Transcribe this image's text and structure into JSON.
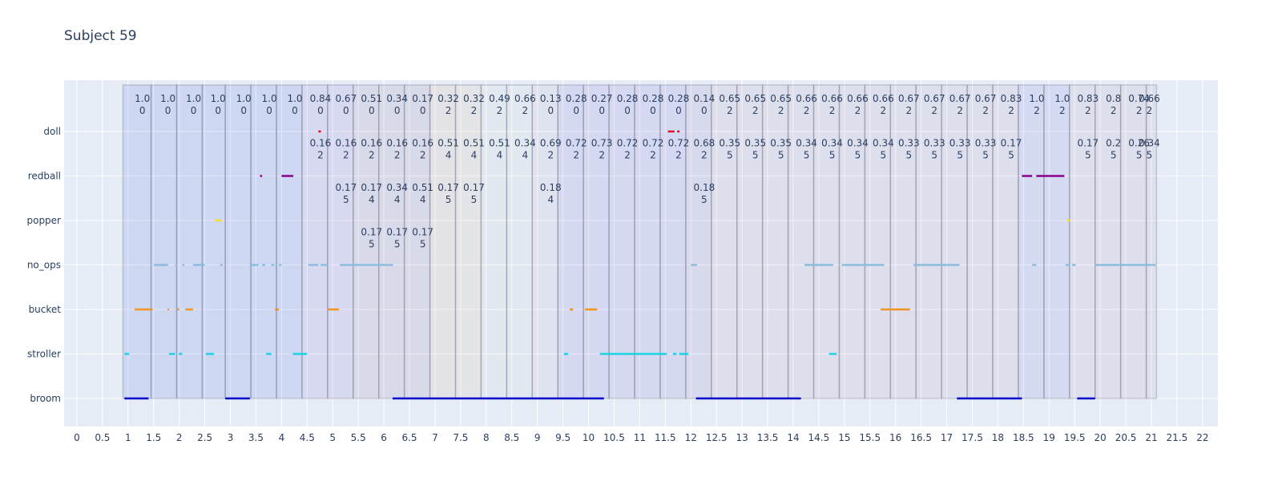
{
  "chart_data": {
    "type": "timeline",
    "title": "Subject 59",
    "xlim": [
      -0.25,
      22.3
    ],
    "x_ticks": [
      0,
      0.5,
      1,
      1.5,
      2,
      2.5,
      3,
      3.5,
      4,
      4.5,
      5,
      5.5,
      6,
      6.5,
      7,
      7.5,
      8,
      8.5,
      9,
      9.5,
      10,
      10.5,
      11,
      11.5,
      12,
      12.5,
      13,
      13.5,
      14,
      14.5,
      15,
      15.5,
      16,
      16.5,
      17,
      17.5,
      18,
      18.5,
      19,
      19.5,
      20,
      20.5,
      21,
      21.5,
      22
    ],
    "categories": [
      "broom",
      "stroller",
      "bucket",
      "no_ops",
      "popper",
      "redball",
      "doll"
    ],
    "colors": {
      "broom": "#0000cc",
      "stroller": "#1cd3e6",
      "bucket": "#f0951e",
      "no_ops": "#8ebcdf",
      "popper": "#f2e02a",
      "redball": "#8b008b",
      "doll": "#e0102a"
    },
    "segments": [
      {
        "cat": "broom",
        "start": 0.93,
        "end": 1.4
      },
      {
        "cat": "broom",
        "start": 2.9,
        "end": 3.38
      },
      {
        "cat": "broom",
        "start": 6.17,
        "end": 10.3
      },
      {
        "cat": "broom",
        "start": 12.1,
        "end": 14.15
      },
      {
        "cat": "broom",
        "start": 17.2,
        "end": 18.47
      },
      {
        "cat": "broom",
        "start": 19.55,
        "end": 19.9
      },
      {
        "cat": "stroller",
        "start": 0.93,
        "end": 1.02
      },
      {
        "cat": "stroller",
        "start": 1.8,
        "end": 1.92
      },
      {
        "cat": "stroller",
        "start": 1.99,
        "end": 2.06
      },
      {
        "cat": "stroller",
        "start": 2.52,
        "end": 2.68
      },
      {
        "cat": "stroller",
        "start": 3.7,
        "end": 3.8
      },
      {
        "cat": "stroller",
        "start": 4.22,
        "end": 4.5
      },
      {
        "cat": "stroller",
        "start": 9.52,
        "end": 9.6
      },
      {
        "cat": "stroller",
        "start": 10.22,
        "end": 11.53
      },
      {
        "cat": "stroller",
        "start": 11.65,
        "end": 11.72
      },
      {
        "cat": "stroller",
        "start": 11.77,
        "end": 11.95
      },
      {
        "cat": "stroller",
        "start": 14.7,
        "end": 14.85
      },
      {
        "cat": "bucket",
        "start": 1.13,
        "end": 1.48
      },
      {
        "cat": "bucket",
        "start": 1.77,
        "end": 1.8
      },
      {
        "cat": "bucket",
        "start": 1.96,
        "end": 2.0
      },
      {
        "cat": "bucket",
        "start": 2.12,
        "end": 2.27
      },
      {
        "cat": "bucket",
        "start": 3.87,
        "end": 3.95
      },
      {
        "cat": "bucket",
        "start": 4.9,
        "end": 5.12
      },
      {
        "cat": "bucket",
        "start": 9.63,
        "end": 9.7
      },
      {
        "cat": "bucket",
        "start": 9.93,
        "end": 10.17
      },
      {
        "cat": "bucket",
        "start": 15.71,
        "end": 16.28
      },
      {
        "cat": "no_ops",
        "start": 1.5,
        "end": 1.78
      },
      {
        "cat": "no_ops",
        "start": 1.92,
        "end": 1.96
      },
      {
        "cat": "no_ops",
        "start": 2.06,
        "end": 2.1
      },
      {
        "cat": "no_ops",
        "start": 2.27,
        "end": 2.5
      },
      {
        "cat": "no_ops",
        "start": 2.8,
        "end": 2.85
      },
      {
        "cat": "no_ops",
        "start": 3.38,
        "end": 3.55
      },
      {
        "cat": "no_ops",
        "start": 3.62,
        "end": 3.68
      },
      {
        "cat": "no_ops",
        "start": 3.8,
        "end": 3.86
      },
      {
        "cat": "no_ops",
        "start": 3.95,
        "end": 4.0
      },
      {
        "cat": "no_ops",
        "start": 4.52,
        "end": 4.72
      },
      {
        "cat": "no_ops",
        "start": 4.76,
        "end": 4.9
      },
      {
        "cat": "no_ops",
        "start": 5.14,
        "end": 6.18
      },
      {
        "cat": "no_ops",
        "start": 12.0,
        "end": 12.12
      },
      {
        "cat": "no_ops",
        "start": 14.22,
        "end": 14.78
      },
      {
        "cat": "no_ops",
        "start": 14.95,
        "end": 15.78
      },
      {
        "cat": "no_ops",
        "start": 16.35,
        "end": 17.25
      },
      {
        "cat": "no_ops",
        "start": 18.67,
        "end": 18.75
      },
      {
        "cat": "no_ops",
        "start": 19.32,
        "end": 19.4
      },
      {
        "cat": "no_ops",
        "start": 19.45,
        "end": 19.52
      },
      {
        "cat": "no_ops",
        "start": 19.9,
        "end": 21.08
      },
      {
        "cat": "popper",
        "start": 2.7,
        "end": 2.83
      },
      {
        "cat": "popper",
        "start": 19.35,
        "end": 19.42
      },
      {
        "cat": "redball",
        "start": 3.58,
        "end": 3.62
      },
      {
        "cat": "redball",
        "start": 4.0,
        "end": 4.23
      },
      {
        "cat": "redball",
        "start": 18.47,
        "end": 18.67
      },
      {
        "cat": "redball",
        "start": 18.75,
        "end": 19.3
      },
      {
        "cat": "doll",
        "start": 4.72,
        "end": 4.77
      },
      {
        "cat": "doll",
        "start": 11.55,
        "end": 11.68
      },
      {
        "cat": "doll",
        "start": 11.73,
        "end": 11.78
      }
    ],
    "windows": [
      {
        "start": 0.9,
        "end": 1.45,
        "color": "#6c7ce6"
      },
      {
        "start": 1.45,
        "end": 1.95,
        "color": "#6c7ce6"
      },
      {
        "start": 1.95,
        "end": 2.45,
        "color": "#6c7ce6"
      },
      {
        "start": 2.45,
        "end": 2.9,
        "color": "#6c7ce6"
      },
      {
        "start": 2.9,
        "end": 3.4,
        "color": "#6c7ce6"
      },
      {
        "start": 3.4,
        "end": 3.9,
        "color": "#6c7ce6"
      },
      {
        "start": 3.9,
        "end": 4.4,
        "color": "#6c7ce6"
      },
      {
        "start": 4.4,
        "end": 4.9,
        "color": "#9a86d6"
      },
      {
        "start": 4.9,
        "end": 5.4,
        "color": "#9a86d6"
      },
      {
        "start": 5.4,
        "end": 5.9,
        "color": "#a38ab8"
      },
      {
        "start": 5.9,
        "end": 6.4,
        "color": "#a38ab8"
      },
      {
        "start": 6.4,
        "end": 6.9,
        "color": "#a38ab8"
      },
      {
        "start": 6.9,
        "end": 7.4,
        "color": "#d9b5a5"
      },
      {
        "start": 7.4,
        "end": 7.9,
        "color": "#d9c0a8"
      },
      {
        "start": 7.9,
        "end": 8.4,
        "color": "#d8d8d8"
      },
      {
        "start": 8.4,
        "end": 8.9,
        "color": "#d8d8d8"
      },
      {
        "start": 8.9,
        "end": 9.4,
        "color": "#c8bcd8"
      },
      {
        "start": 9.4,
        "end": 9.9,
        "color": "#8a80e0"
      },
      {
        "start": 9.9,
        "end": 10.4,
        "color": "#8a80e0"
      },
      {
        "start": 10.4,
        "end": 10.9,
        "color": "#8a80e0"
      },
      {
        "start": 10.9,
        "end": 11.4,
        "color": "#8a80e0"
      },
      {
        "start": 11.4,
        "end": 11.9,
        "color": "#8a80e0"
      },
      {
        "start": 11.9,
        "end": 12.4,
        "color": "#9a86c6"
      },
      {
        "start": 12.4,
        "end": 12.9,
        "color": "#c0a8c8"
      },
      {
        "start": 12.9,
        "end": 13.4,
        "color": "#c0a8c8"
      },
      {
        "start": 13.4,
        "end": 13.9,
        "color": "#c0a8c8"
      },
      {
        "start": 13.9,
        "end": 14.4,
        "color": "#c0a8c8"
      },
      {
        "start": 14.4,
        "end": 14.9,
        "color": "#c0a8c8"
      },
      {
        "start": 14.9,
        "end": 15.4,
        "color": "#c0a8c8"
      },
      {
        "start": 15.4,
        "end": 15.9,
        "color": "#c0a8c8"
      },
      {
        "start": 15.9,
        "end": 16.4,
        "color": "#c0a8c8"
      },
      {
        "start": 16.4,
        "end": 16.9,
        "color": "#c0a8c8"
      },
      {
        "start": 16.9,
        "end": 17.4,
        "color": "#c0a8c8"
      },
      {
        "start": 17.4,
        "end": 17.9,
        "color": "#c0a8c8"
      },
      {
        "start": 17.9,
        "end": 18.4,
        "color": "#c0a8c8"
      },
      {
        "start": 18.4,
        "end": 18.9,
        "color": "#8a8ce6"
      },
      {
        "start": 18.9,
        "end": 19.4,
        "color": "#8a8ce6"
      },
      {
        "start": 19.4,
        "end": 19.9,
        "color": "#c0a8c8"
      },
      {
        "start": 19.9,
        "end": 20.4,
        "color": "#c0a8c8"
      },
      {
        "start": 20.4,
        "end": 20.9,
        "color": "#c0a8c8"
      },
      {
        "start": 20.9,
        "end": 21.1,
        "color": "#c0a8c8"
      }
    ],
    "annotations": [
      {
        "x": 1.28,
        "y": "doll",
        "l1": "1.0",
        "l2": "0"
      },
      {
        "x": 1.78,
        "y": "doll",
        "l1": "1.0",
        "l2": "0"
      },
      {
        "x": 2.28,
        "y": "doll",
        "l1": "1.0",
        "l2": "0"
      },
      {
        "x": 2.76,
        "y": "doll",
        "l1": "1.0",
        "l2": "0"
      },
      {
        "x": 3.26,
        "y": "doll",
        "l1": "1.0",
        "l2": "0"
      },
      {
        "x": 3.76,
        "y": "doll",
        "l1": "1.0",
        "l2": "0"
      },
      {
        "x": 4.26,
        "y": "doll",
        "l1": "1.0",
        "l2": "0"
      },
      {
        "x": 4.76,
        "y": "doll",
        "l1": "0.84",
        "l2": "0"
      },
      {
        "x": 4.76,
        "y": "redball",
        "l1": "0.16",
        "l2": "2"
      },
      {
        "x": 5.26,
        "y": "doll",
        "l1": "0.67",
        "l2": "0"
      },
      {
        "x": 5.26,
        "y": "redball",
        "l1": "0.16",
        "l2": "2"
      },
      {
        "x": 5.26,
        "y": "popper",
        "l1": "0.17",
        "l2": "5"
      },
      {
        "x": 5.76,
        "y": "doll",
        "l1": "0.51",
        "l2": "0"
      },
      {
        "x": 5.76,
        "y": "redball",
        "l1": "0.16",
        "l2": "2"
      },
      {
        "x": 5.76,
        "y": "popper",
        "l1": "0.17",
        "l2": "4"
      },
      {
        "x": 5.76,
        "y": "no_ops",
        "l1": "0.17",
        "l2": "5"
      },
      {
        "x": 6.26,
        "y": "doll",
        "l1": "0.34",
        "l2": "0"
      },
      {
        "x": 6.26,
        "y": "redball",
        "l1": "0.16",
        "l2": "2"
      },
      {
        "x": 6.26,
        "y": "popper",
        "l1": "0.34",
        "l2": "4"
      },
      {
        "x": 6.26,
        "y": "no_ops",
        "l1": "0.17",
        "l2": "5"
      },
      {
        "x": 6.76,
        "y": "doll",
        "l1": "0.17",
        "l2": "0"
      },
      {
        "x": 6.76,
        "y": "redball",
        "l1": "0.16",
        "l2": "2"
      },
      {
        "x": 6.76,
        "y": "popper",
        "l1": "0.51",
        "l2": "4"
      },
      {
        "x": 6.76,
        "y": "no_ops",
        "l1": "0.17",
        "l2": "5"
      },
      {
        "x": 7.26,
        "y": "doll",
        "l1": "0.32",
        "l2": "2"
      },
      {
        "x": 7.26,
        "y": "redball",
        "l1": "0.51",
        "l2": "4"
      },
      {
        "x": 7.26,
        "y": "popper",
        "l1": "0.17",
        "l2": "5"
      },
      {
        "x": 7.76,
        "y": "doll",
        "l1": "0.32",
        "l2": "2"
      },
      {
        "x": 7.76,
        "y": "redball",
        "l1": "0.51",
        "l2": "4"
      },
      {
        "x": 7.76,
        "y": "popper",
        "l1": "0.17",
        "l2": "5"
      },
      {
        "x": 8.26,
        "y": "doll",
        "l1": "0.49",
        "l2": "2"
      },
      {
        "x": 8.26,
        "y": "redball",
        "l1": "0.51",
        "l2": "4"
      },
      {
        "x": 8.76,
        "y": "doll",
        "l1": "0.66",
        "l2": "2"
      },
      {
        "x": 8.76,
        "y": "redball",
        "l1": "0.34",
        "l2": "4"
      },
      {
        "x": 9.26,
        "y": "doll",
        "l1": "0.13",
        "l2": "0"
      },
      {
        "x": 9.26,
        "y": "redball",
        "l1": "0.69",
        "l2": "2"
      },
      {
        "x": 9.26,
        "y": "popper",
        "l1": "0.18",
        "l2": "4"
      },
      {
        "x": 9.76,
        "y": "doll",
        "l1": "0.28",
        "l2": "0"
      },
      {
        "x": 9.76,
        "y": "redball",
        "l1": "0.72",
        "l2": "2"
      },
      {
        "x": 10.26,
        "y": "doll",
        "l1": "0.27",
        "l2": "0"
      },
      {
        "x": 10.26,
        "y": "redball",
        "l1": "0.73",
        "l2": "2"
      },
      {
        "x": 10.76,
        "y": "doll",
        "l1": "0.28",
        "l2": "0"
      },
      {
        "x": 10.76,
        "y": "redball",
        "l1": "0.72",
        "l2": "2"
      },
      {
        "x": 11.26,
        "y": "doll",
        "l1": "0.28",
        "l2": "0"
      },
      {
        "x": 11.26,
        "y": "redball",
        "l1": "0.72",
        "l2": "2"
      },
      {
        "x": 11.76,
        "y": "doll",
        "l1": "0.28",
        "l2": "0"
      },
      {
        "x": 11.76,
        "y": "redball",
        "l1": "0.72",
        "l2": "2"
      },
      {
        "x": 12.26,
        "y": "doll",
        "l1": "0.14",
        "l2": "0"
      },
      {
        "x": 12.26,
        "y": "redball",
        "l1": "0.68",
        "l2": "2"
      },
      {
        "x": 12.26,
        "y": "popper",
        "l1": "0.18",
        "l2": "5"
      },
      {
        "x": 12.76,
        "y": "doll",
        "l1": "0.65",
        "l2": "2"
      },
      {
        "x": 12.76,
        "y": "redball",
        "l1": "0.35",
        "l2": "5"
      },
      {
        "x": 13.26,
        "y": "doll",
        "l1": "0.65",
        "l2": "2"
      },
      {
        "x": 13.26,
        "y": "redball",
        "l1": "0.35",
        "l2": "5"
      },
      {
        "x": 13.76,
        "y": "doll",
        "l1": "0.65",
        "l2": "2"
      },
      {
        "x": 13.76,
        "y": "redball",
        "l1": "0.35",
        "l2": "5"
      },
      {
        "x": 14.26,
        "y": "doll",
        "l1": "0.66",
        "l2": "2"
      },
      {
        "x": 14.26,
        "y": "redball",
        "l1": "0.34",
        "l2": "5"
      },
      {
        "x": 14.76,
        "y": "doll",
        "l1": "0.66",
        "l2": "2"
      },
      {
        "x": 14.76,
        "y": "redball",
        "l1": "0.34",
        "l2": "5"
      },
      {
        "x": 15.26,
        "y": "doll",
        "l1": "0.66",
        "l2": "2"
      },
      {
        "x": 15.26,
        "y": "redball",
        "l1": "0.34",
        "l2": "5"
      },
      {
        "x": 15.76,
        "y": "doll",
        "l1": "0.66",
        "l2": "2"
      },
      {
        "x": 15.76,
        "y": "redball",
        "l1": "0.34",
        "l2": "5"
      },
      {
        "x": 16.26,
        "y": "doll",
        "l1": "0.67",
        "l2": "2"
      },
      {
        "x": 16.26,
        "y": "redball",
        "l1": "0.33",
        "l2": "5"
      },
      {
        "x": 16.76,
        "y": "doll",
        "l1": "0.67",
        "l2": "2"
      },
      {
        "x": 16.76,
        "y": "redball",
        "l1": "0.33",
        "l2": "5"
      },
      {
        "x": 17.26,
        "y": "doll",
        "l1": "0.67",
        "l2": "2"
      },
      {
        "x": 17.26,
        "y": "redball",
        "l1": "0.33",
        "l2": "5"
      },
      {
        "x": 17.76,
        "y": "doll",
        "l1": "0.67",
        "l2": "2"
      },
      {
        "x": 17.76,
        "y": "redball",
        "l1": "0.33",
        "l2": "5"
      },
      {
        "x": 18.26,
        "y": "doll",
        "l1": "0.83",
        "l2": "2"
      },
      {
        "x": 18.26,
        "y": "redball",
        "l1": "0.17",
        "l2": "5"
      },
      {
        "x": 18.76,
        "y": "doll",
        "l1": "1.0",
        "l2": "2"
      },
      {
        "x": 19.26,
        "y": "doll",
        "l1": "1.0",
        "l2": "2"
      },
      {
        "x": 19.76,
        "y": "doll",
        "l1": "0.83",
        "l2": "2"
      },
      {
        "x": 19.76,
        "y": "redball",
        "l1": "0.17",
        "l2": "5"
      },
      {
        "x": 20.26,
        "y": "doll",
        "l1": "0.8",
        "l2": "2"
      },
      {
        "x": 20.26,
        "y": "redball",
        "l1": "0.2",
        "l2": "5"
      },
      {
        "x": 20.76,
        "y": "doll",
        "l1": "0.74",
        "l2": "2"
      },
      {
        "x": 20.76,
        "y": "redball",
        "l1": "0.26",
        "l2": "5"
      },
      {
        "x": 20.96,
        "y": "doll",
        "l1": "0.66",
        "l2": "2"
      },
      {
        "x": 20.96,
        "y": "redball",
        "l1": "0.34",
        "l2": "5"
      }
    ]
  }
}
